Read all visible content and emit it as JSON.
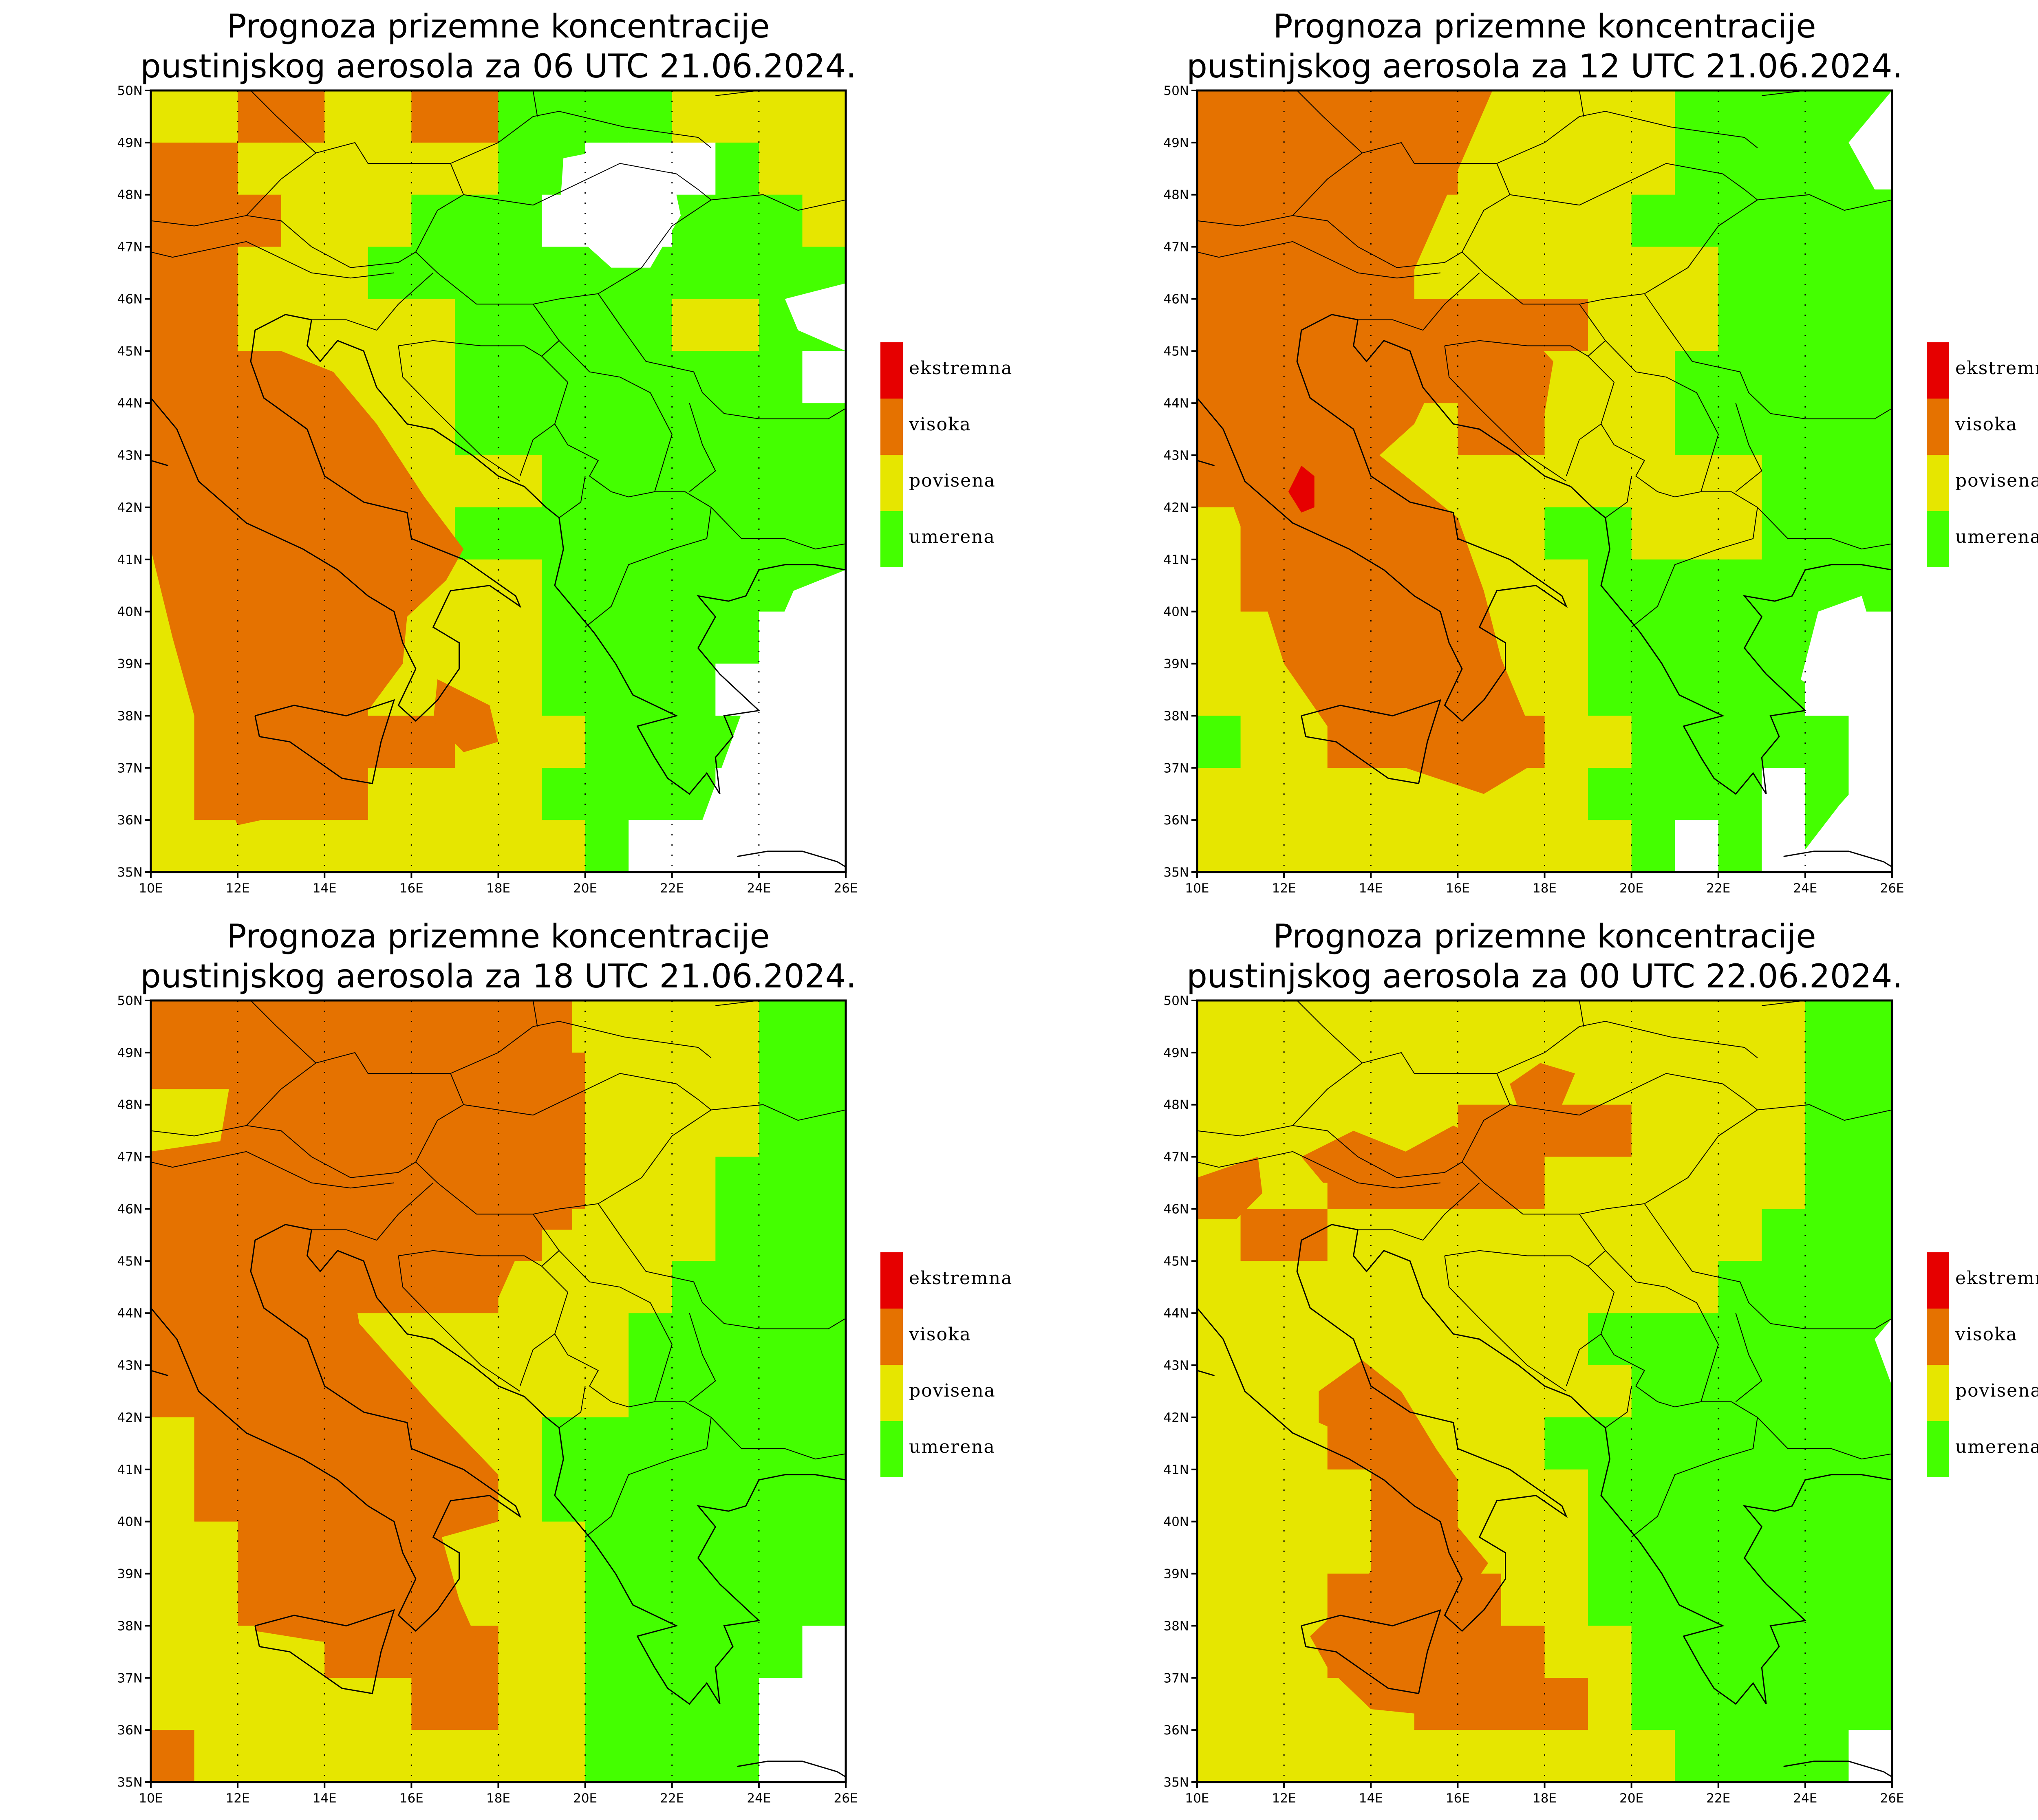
{
  "colors": {
    "umerena": "#44ff00",
    "povisena": "#e6e600",
    "visoka": "#e57200",
    "ekstremna": "#e60000",
    "none": "#ffffff",
    "coast": "#000000",
    "border": "#000000"
  },
  "legend": [
    {
      "key": "ekstremna",
      "label": "ekstremna",
      "color": "#e60000"
    },
    {
      "key": "visoka",
      "label": "visoka",
      "color": "#e57200"
    },
    {
      "key": "povisena",
      "label": "povisena",
      "color": "#e6e600"
    },
    {
      "key": "umerena",
      "label": "umerena",
      "color": "#44ff00"
    }
  ],
  "axes": {
    "lon_ticks": [
      "10E",
      "12E",
      "14E",
      "16E",
      "18E",
      "20E",
      "22E",
      "24E",
      "26E"
    ],
    "lat_ticks": [
      "35N",
      "36N",
      "37N",
      "38N",
      "39N",
      "40N",
      "41N",
      "42N",
      "43N",
      "44N",
      "45N",
      "46N",
      "47N",
      "48N",
      "49N",
      "50N"
    ]
  },
  "panels": [
    {
      "title_line1": "Prognoza prizemne koncentracije",
      "title_line2": "pustinjskog aerosola za 06 UTC 21.06.2024."
    },
    {
      "title_line1": "Prognoza prizemne koncentracije",
      "title_line2": "pustinjskog aerosola za 12 UTC 21.06.2024."
    },
    {
      "title_line1": "Prognoza prizemne koncentracije",
      "title_line2": "pustinjskog aerosola za 18 UTC 21.06.2024."
    },
    {
      "title_line1": "Prognoza prizemne koncentracije",
      "title_line2": "pustinjskog aerosola za 00 UTC 22.06.2024."
    }
  ]
}
